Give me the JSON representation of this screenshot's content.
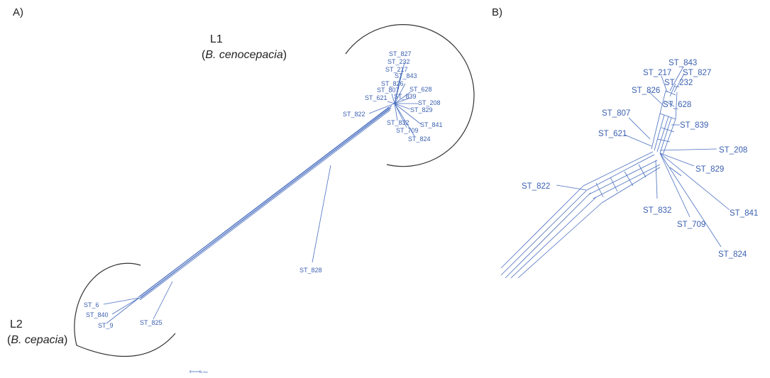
{
  "panel_a": {
    "label": "A)",
    "lineage_1": {
      "name": "L1",
      "species": "B. cenocepacia"
    },
    "lineage_2": {
      "name": "L2",
      "species": "B. cepacia"
    },
    "st_labels": {
      "st827": "ST_827",
      "st232": "ST_232",
      "st217": "ST_217",
      "st843": "ST_843",
      "st826": "ST_826",
      "st628": "ST_628",
      "st807": "ST_807",
      "st839": "ST_839",
      "st621": "ST_621",
      "st208": "ST_208",
      "st822": "ST_822",
      "st829": "ST_829",
      "st832": "ST_832",
      "st841": "ST_841",
      "st709": "ST_709",
      "st824": "ST_824",
      "st828": "ST_828",
      "st6": "ST_6",
      "st840": "ST_840",
      "st9": "ST_9",
      "st825": "ST_825"
    },
    "scale_bar": "0.001"
  },
  "panel_b": {
    "label": "B)",
    "st_labels": {
      "st843": "ST_843",
      "st217": "ST_217",
      "st827": "ST_827",
      "st232": "ST_232",
      "st826": "ST_826",
      "st628": "ST_628",
      "st807": "ST_807",
      "st839": "ST_839",
      "st621": "ST_621",
      "st208": "ST_208",
      "st829": "ST_829",
      "st822": "ST_822",
      "st832": "ST_832",
      "st841": "ST_841",
      "st709": "ST_709",
      "st824": "ST_824"
    }
  }
}
